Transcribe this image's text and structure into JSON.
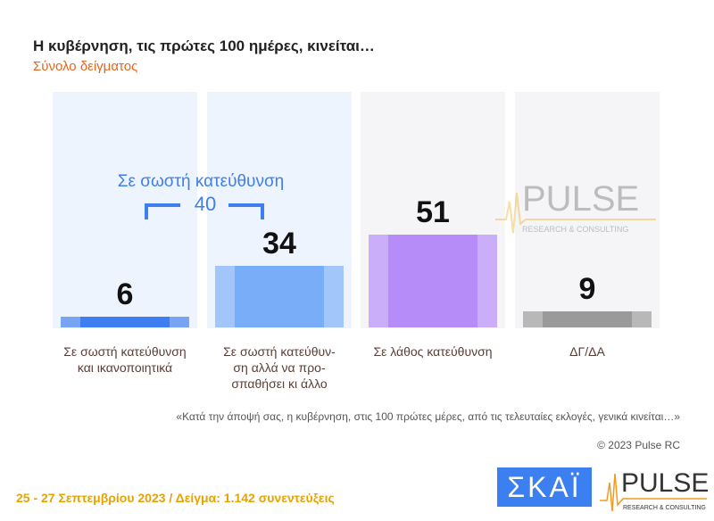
{
  "title": "Η κυβέρνηση, τις πρώτες 100 ημέρες, κινείται…",
  "subtitle": "Σύνολο δείγματος",
  "chart_data": {
    "type": "bar",
    "categories": [
      "Σε σωστή κατεύθυνση και ικανοποιητικά",
      "Σε σωστή κατεύθυν-ση αλλά να προ-σπαθήσει κι άλλο",
      "Σε λάθος κατεύθυνση",
      "ΔΓ/ΔΑ"
    ],
    "values": [
      6,
      34,
      51,
      9
    ],
    "colors": [
      "#3d7ef0",
      "#7aadf8",
      "#b58cf8",
      "#9a9a9a"
    ],
    "column_bg": [
      "#eef4fd",
      "#eef4fd",
      "#f5f5f7",
      "#f5f5f7"
    ],
    "ylim": [
      0,
      51
    ],
    "annotation": {
      "label": "Σε σωστή κατεύθυνση",
      "total": "40"
    }
  },
  "question": "«Κατά την άποψή σας, η κυβέρνηση, στις 100 πρώτες μέρες, από τις τελευταίες εκλογές, γενικά κινείται…»",
  "copyright": "© 2023 Pulse RC",
  "footer": "25 - 27  Σεπτεμβρίου  2023  /  Δείγμα:  1.142 συνεντεύξεις",
  "logos": {
    "skai": "ΣΚΑΪ",
    "pulse": "PULSE",
    "pulse_sub": "RESEARCH & CONSULTING"
  }
}
